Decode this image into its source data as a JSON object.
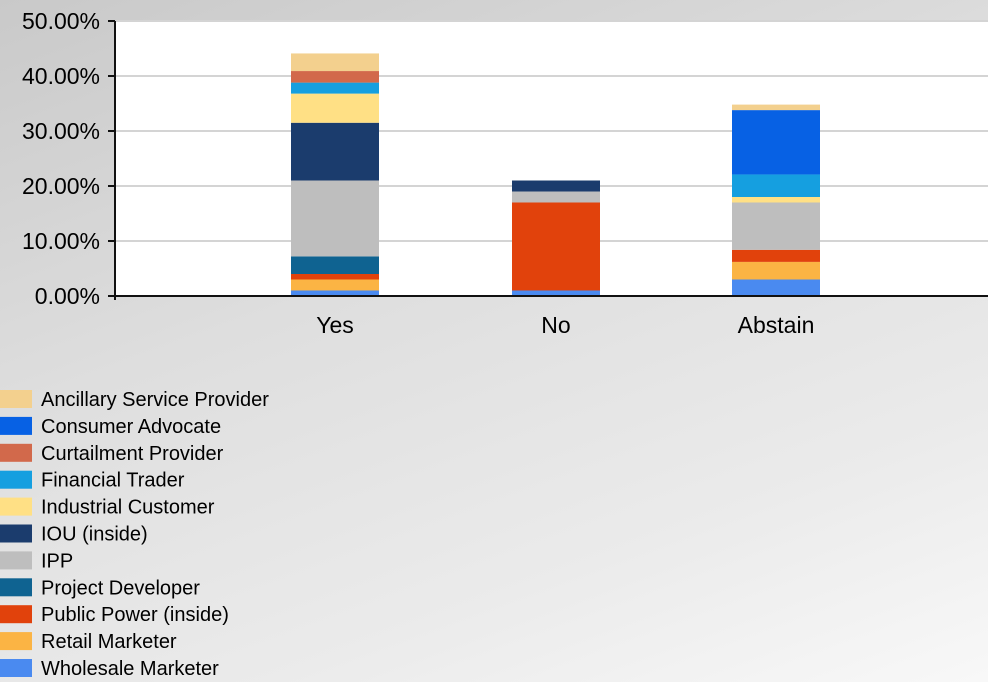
{
  "chart_data": {
    "type": "bar",
    "stacked": true,
    "categories": [
      "Yes",
      "No",
      "Abstain"
    ],
    "ylim": [
      0,
      50
    ],
    "yticks": [
      0,
      10,
      20,
      30,
      40,
      50
    ],
    "ytick_labels": [
      "0.00%",
      "10.00%",
      "20.00%",
      "30.00%",
      "40.00%",
      "50.00%"
    ],
    "grid": true,
    "legend_position": "bottom-left",
    "series": [
      {
        "name": "Wholesale Marketer",
        "color": "#4A8AF0",
        "values": [
          1.0,
          1.0,
          3.0
        ]
      },
      {
        "name": "Retail Marketer",
        "color": "#FBB444",
        "values": [
          2.0,
          0,
          3.2
        ]
      },
      {
        "name": "Public Power (inside)",
        "color": "#E1420C",
        "values": [
          1.0,
          16.0,
          2.2
        ]
      },
      {
        "name": "Project Developer",
        "color": "#0F6391",
        "values": [
          3.2,
          0,
          0
        ]
      },
      {
        "name": "IPP",
        "color": "#BEBEBE",
        "values": [
          13.8,
          2.0,
          8.6
        ]
      },
      {
        "name": "IOU (inside)",
        "color": "#1B3C6D",
        "values": [
          10.5,
          2.0,
          0
        ]
      },
      {
        "name": "Industrial Customer",
        "color": "#FFE085",
        "values": [
          5.3,
          0,
          1.0
        ]
      },
      {
        "name": "Financial Trader",
        "color": "#159FE0",
        "values": [
          2.0,
          0,
          4.1
        ]
      },
      {
        "name": "Curtailment Provider",
        "color": "#D2694B",
        "values": [
          2.1,
          0,
          0
        ]
      },
      {
        "name": "Consumer Advocate",
        "color": "#0761E4",
        "values": [
          0,
          0,
          11.7
        ]
      },
      {
        "name": "Ancillary Service Provider",
        "color": "#F3D08E",
        "values": [
          3.2,
          0,
          1.0
        ]
      }
    ],
    "legend_order": [
      "Ancillary Service Provider",
      "Consumer Advocate",
      "Curtailment Provider",
      "Financial Trader",
      "Industrial Customer",
      "IOU (inside)",
      "IPP",
      "Project Developer",
      "Public Power (inside)",
      "Retail Marketer",
      "Wholesale Marketer"
    ]
  }
}
